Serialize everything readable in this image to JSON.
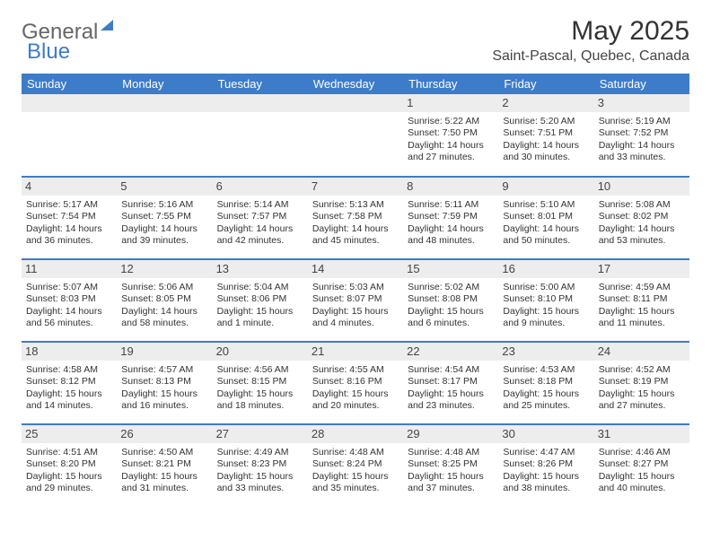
{
  "brand": {
    "part1": "General",
    "part2": "Blue",
    "triangle_color": "#3d7cc9"
  },
  "title": "May 2025",
  "location": "Saint-Pascal, Quebec, Canada",
  "colors": {
    "header_bg": "#3d7cc9",
    "header_text": "#ffffff",
    "daynum_bg": "#ededed",
    "text": "#333333"
  },
  "weekdays": [
    "Sunday",
    "Monday",
    "Tuesday",
    "Wednesday",
    "Thursday",
    "Friday",
    "Saturday"
  ],
  "weeks": [
    [
      {
        "n": "",
        "sr": "",
        "ss": "",
        "dl": ""
      },
      {
        "n": "",
        "sr": "",
        "ss": "",
        "dl": ""
      },
      {
        "n": "",
        "sr": "",
        "ss": "",
        "dl": ""
      },
      {
        "n": "",
        "sr": "",
        "ss": "",
        "dl": ""
      },
      {
        "n": "1",
        "sr": "Sunrise: 5:22 AM",
        "ss": "Sunset: 7:50 PM",
        "dl": "Daylight: 14 hours and 27 minutes."
      },
      {
        "n": "2",
        "sr": "Sunrise: 5:20 AM",
        "ss": "Sunset: 7:51 PM",
        "dl": "Daylight: 14 hours and 30 minutes."
      },
      {
        "n": "3",
        "sr": "Sunrise: 5:19 AM",
        "ss": "Sunset: 7:52 PM",
        "dl": "Daylight: 14 hours and 33 minutes."
      }
    ],
    [
      {
        "n": "4",
        "sr": "Sunrise: 5:17 AM",
        "ss": "Sunset: 7:54 PM",
        "dl": "Daylight: 14 hours and 36 minutes."
      },
      {
        "n": "5",
        "sr": "Sunrise: 5:16 AM",
        "ss": "Sunset: 7:55 PM",
        "dl": "Daylight: 14 hours and 39 minutes."
      },
      {
        "n": "6",
        "sr": "Sunrise: 5:14 AM",
        "ss": "Sunset: 7:57 PM",
        "dl": "Daylight: 14 hours and 42 minutes."
      },
      {
        "n": "7",
        "sr": "Sunrise: 5:13 AM",
        "ss": "Sunset: 7:58 PM",
        "dl": "Daylight: 14 hours and 45 minutes."
      },
      {
        "n": "8",
        "sr": "Sunrise: 5:11 AM",
        "ss": "Sunset: 7:59 PM",
        "dl": "Daylight: 14 hours and 48 minutes."
      },
      {
        "n": "9",
        "sr": "Sunrise: 5:10 AM",
        "ss": "Sunset: 8:01 PM",
        "dl": "Daylight: 14 hours and 50 minutes."
      },
      {
        "n": "10",
        "sr": "Sunrise: 5:08 AM",
        "ss": "Sunset: 8:02 PM",
        "dl": "Daylight: 14 hours and 53 minutes."
      }
    ],
    [
      {
        "n": "11",
        "sr": "Sunrise: 5:07 AM",
        "ss": "Sunset: 8:03 PM",
        "dl": "Daylight: 14 hours and 56 minutes."
      },
      {
        "n": "12",
        "sr": "Sunrise: 5:06 AM",
        "ss": "Sunset: 8:05 PM",
        "dl": "Daylight: 14 hours and 58 minutes."
      },
      {
        "n": "13",
        "sr": "Sunrise: 5:04 AM",
        "ss": "Sunset: 8:06 PM",
        "dl": "Daylight: 15 hours and 1 minute."
      },
      {
        "n": "14",
        "sr": "Sunrise: 5:03 AM",
        "ss": "Sunset: 8:07 PM",
        "dl": "Daylight: 15 hours and 4 minutes."
      },
      {
        "n": "15",
        "sr": "Sunrise: 5:02 AM",
        "ss": "Sunset: 8:08 PM",
        "dl": "Daylight: 15 hours and 6 minutes."
      },
      {
        "n": "16",
        "sr": "Sunrise: 5:00 AM",
        "ss": "Sunset: 8:10 PM",
        "dl": "Daylight: 15 hours and 9 minutes."
      },
      {
        "n": "17",
        "sr": "Sunrise: 4:59 AM",
        "ss": "Sunset: 8:11 PM",
        "dl": "Daylight: 15 hours and 11 minutes."
      }
    ],
    [
      {
        "n": "18",
        "sr": "Sunrise: 4:58 AM",
        "ss": "Sunset: 8:12 PM",
        "dl": "Daylight: 15 hours and 14 minutes."
      },
      {
        "n": "19",
        "sr": "Sunrise: 4:57 AM",
        "ss": "Sunset: 8:13 PM",
        "dl": "Daylight: 15 hours and 16 minutes."
      },
      {
        "n": "20",
        "sr": "Sunrise: 4:56 AM",
        "ss": "Sunset: 8:15 PM",
        "dl": "Daylight: 15 hours and 18 minutes."
      },
      {
        "n": "21",
        "sr": "Sunrise: 4:55 AM",
        "ss": "Sunset: 8:16 PM",
        "dl": "Daylight: 15 hours and 20 minutes."
      },
      {
        "n": "22",
        "sr": "Sunrise: 4:54 AM",
        "ss": "Sunset: 8:17 PM",
        "dl": "Daylight: 15 hours and 23 minutes."
      },
      {
        "n": "23",
        "sr": "Sunrise: 4:53 AM",
        "ss": "Sunset: 8:18 PM",
        "dl": "Daylight: 15 hours and 25 minutes."
      },
      {
        "n": "24",
        "sr": "Sunrise: 4:52 AM",
        "ss": "Sunset: 8:19 PM",
        "dl": "Daylight: 15 hours and 27 minutes."
      }
    ],
    [
      {
        "n": "25",
        "sr": "Sunrise: 4:51 AM",
        "ss": "Sunset: 8:20 PM",
        "dl": "Daylight: 15 hours and 29 minutes."
      },
      {
        "n": "26",
        "sr": "Sunrise: 4:50 AM",
        "ss": "Sunset: 8:21 PM",
        "dl": "Daylight: 15 hours and 31 minutes."
      },
      {
        "n": "27",
        "sr": "Sunrise: 4:49 AM",
        "ss": "Sunset: 8:23 PM",
        "dl": "Daylight: 15 hours and 33 minutes."
      },
      {
        "n": "28",
        "sr": "Sunrise: 4:48 AM",
        "ss": "Sunset: 8:24 PM",
        "dl": "Daylight: 15 hours and 35 minutes."
      },
      {
        "n": "29",
        "sr": "Sunrise: 4:48 AM",
        "ss": "Sunset: 8:25 PM",
        "dl": "Daylight: 15 hours and 37 minutes."
      },
      {
        "n": "30",
        "sr": "Sunrise: 4:47 AM",
        "ss": "Sunset: 8:26 PM",
        "dl": "Daylight: 15 hours and 38 minutes."
      },
      {
        "n": "31",
        "sr": "Sunrise: 4:46 AM",
        "ss": "Sunset: 8:27 PM",
        "dl": "Daylight: 15 hours and 40 minutes."
      }
    ]
  ]
}
